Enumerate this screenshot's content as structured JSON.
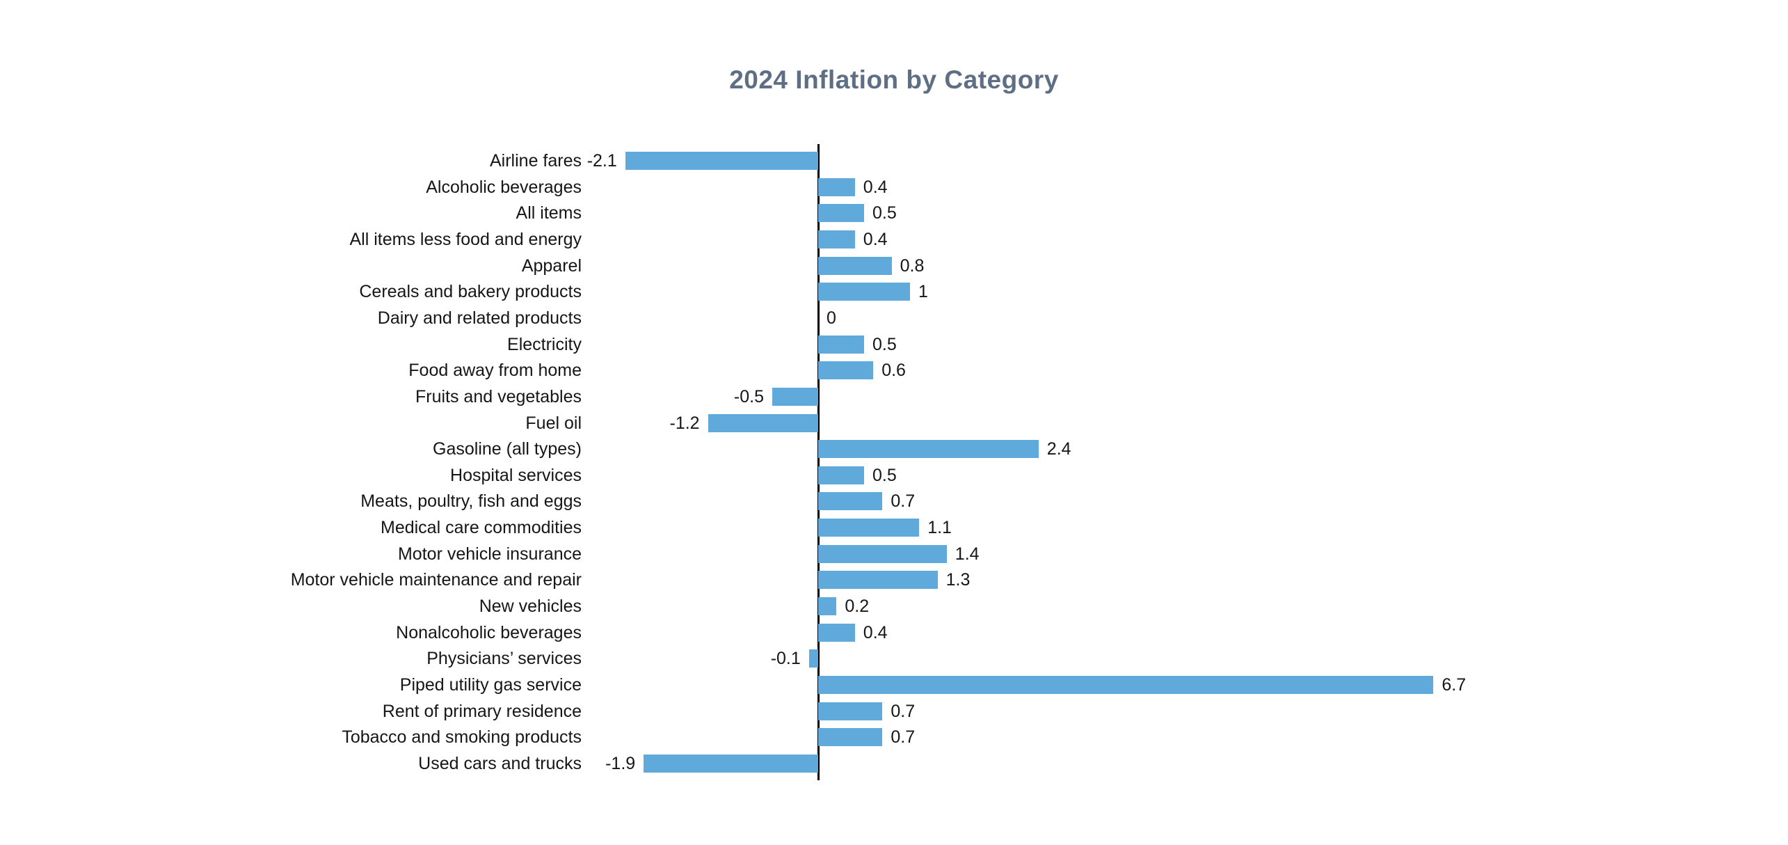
{
  "title": "2024 Inflation by Category",
  "chart_data": {
    "type": "bar",
    "orientation": "horizontal",
    "title": "2024 Inflation by Category",
    "xlabel": "",
    "ylabel": "",
    "grid": false,
    "legend": false,
    "zero_line": true,
    "value_labels_position": "outside-bar-ends",
    "xlim": [
      -2.6,
      10.5
    ],
    "categories": [
      "Airline fares",
      "Alcoholic beverages",
      "All items",
      "All items less food and energy",
      "Apparel",
      "Cereals and bakery products",
      "Dairy and related products",
      "Electricity",
      "Food away from home",
      "Fruits and vegetables",
      "Fuel oil",
      "Gasoline (all types)",
      "Hospital services",
      "Meats, poultry, fish and eggs",
      "Medical care commodities",
      "Motor vehicle insurance",
      "Motor vehicle maintenance and repair",
      "New vehicles",
      "Nonalcoholic beverages",
      "Physicians’ services",
      "Piped utility gas service",
      "Rent of primary residence",
      "Tobacco and smoking products",
      "Used cars and trucks"
    ],
    "values": [
      -2.1,
      0.4,
      0.5,
      0.4,
      0.8,
      1,
      0,
      0.5,
      0.6,
      -0.5,
      -1.2,
      2.4,
      0.5,
      0.7,
      1.1,
      1.4,
      1.3,
      0.2,
      0.4,
      -0.1,
      6.7,
      0.7,
      0.7,
      -1.9
    ],
    "value_labels": [
      "-2.1",
      "0.4",
      "0.5",
      "0.4",
      "0.8",
      "1",
      "0",
      "0.5",
      "0.6",
      "-0.5",
      "-1.2",
      "2.4",
      "0.5",
      "0.7",
      "1.1",
      "1.4",
      "1.3",
      "0.2",
      "0.4",
      "-0.1",
      "6.7",
      "0.7",
      "0.7",
      "-1.9"
    ],
    "colors": {
      "bar": "#5FA9DB",
      "axis": "#000000",
      "labels": "#161616",
      "title": "#5E6E84",
      "background": "#FFFFFF"
    }
  }
}
